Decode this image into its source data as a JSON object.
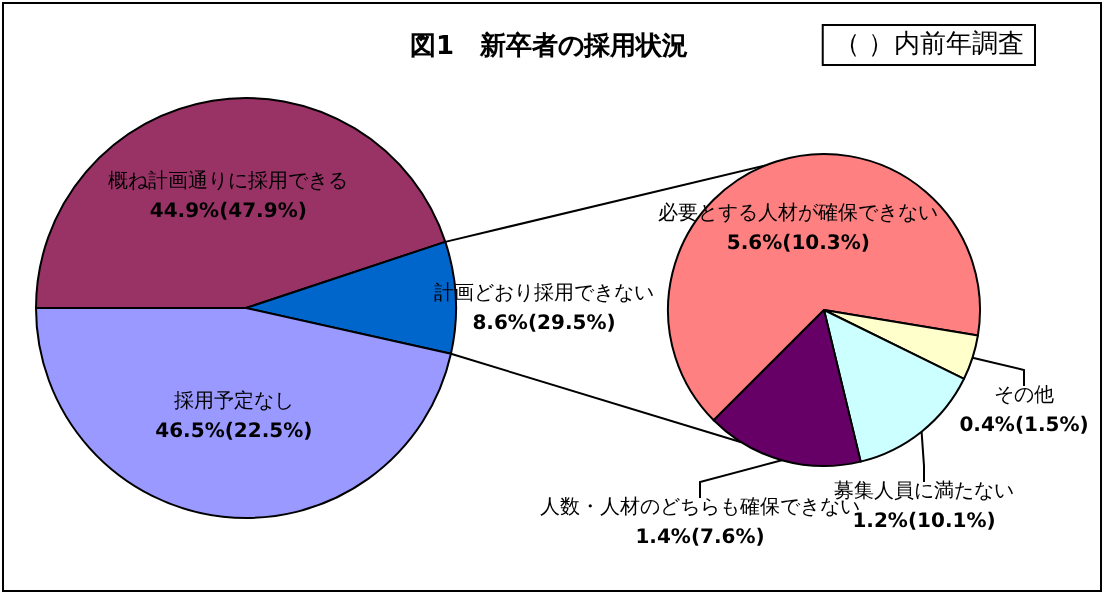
{
  "chart_data": [
    {
      "type": "pie",
      "title": "図1　新卒者の採用状況",
      "annotations": [
        "（ ）内前年調査"
      ],
      "legend": false,
      "categories": [
        "概ね計画通りに採用できる",
        "計画どおり採用できない",
        "採用予定なし"
      ],
      "values": [
        44.9,
        8.6,
        46.5
      ],
      "colors": [
        "#993366",
        "#0066cc",
        "#9999ff"
      ],
      "value_labels": [
        "44.9%(47.9%)",
        "8.6%(29.5%)",
        "46.5%(22.5%)"
      ]
    },
    {
      "type": "pie",
      "legend": false,
      "categories": [
        "必要とする人材が確保できない",
        "その他",
        "募集人員に満たない",
        "人数・人材のどちらも確保できない"
      ],
      "values": [
        5.6,
        0.4,
        1.2,
        1.4
      ],
      "colors": [
        "#ff8080",
        "#ffffcc",
        "#ccffff",
        "#660066"
      ],
      "value_labels": [
        "5.6%(10.3%)",
        "0.4%(1.5%)",
        "1.2%(10.1%)",
        "1.4%(7.6%)"
      ]
    }
  ]
}
